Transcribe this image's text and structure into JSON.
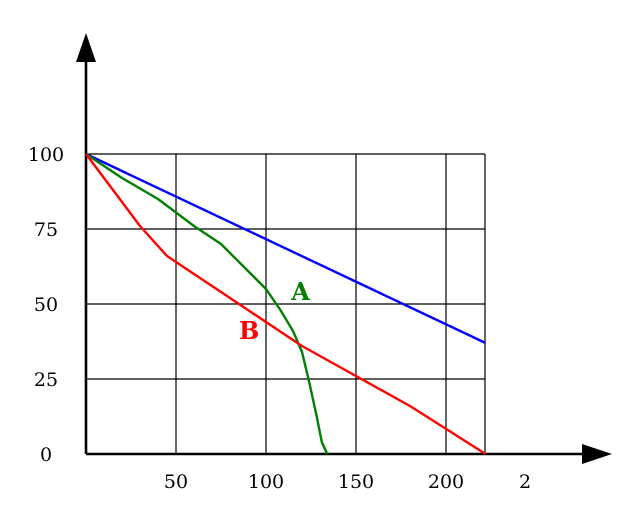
{
  "chart_data": {
    "type": "line",
    "title": "",
    "xlabel": "",
    "ylabel": "",
    "xlim": [
      0,
      225
    ],
    "ylim": [
      0,
      100
    ],
    "grid": true,
    "x_ticks": [
      50,
      100,
      150,
      200
    ],
    "x_tick_labels": [
      "50",
      "100",
      "150",
      "200"
    ],
    "y_ticks": [
      0,
      25,
      50,
      75,
      100
    ],
    "y_tick_labels": [
      "0",
      "25",
      "50",
      "75",
      "100"
    ],
    "x_axis_end_label": "2",
    "series": [
      {
        "name": "",
        "color": "#0000ff",
        "x": [
          0,
          222
        ],
        "y": [
          100,
          37
        ]
      },
      {
        "name": "A",
        "color": "#008000",
        "x": [
          0,
          20,
          40,
          60,
          75,
          90,
          100,
          108,
          115,
          120,
          124,
          128,
          131,
          134
        ],
        "y": [
          100,
          92,
          85,
          76,
          70,
          61,
          55,
          48,
          41,
          34,
          24,
          13,
          4,
          0
        ]
      },
      {
        "name": "B",
        "color": "#ff0000",
        "x": [
          0,
          15,
          30,
          45,
          65,
          90,
          120,
          150,
          180,
          222
        ],
        "y": [
          100,
          88,
          76,
          66,
          58,
          48,
          36,
          26,
          16,
          0
        ]
      }
    ],
    "series_labels": [
      {
        "text": "A",
        "color": "#008000",
        "x": 114,
        "y": 54
      },
      {
        "text": "B",
        "color": "#ff0000",
        "x": 85,
        "y": 41
      }
    ]
  }
}
